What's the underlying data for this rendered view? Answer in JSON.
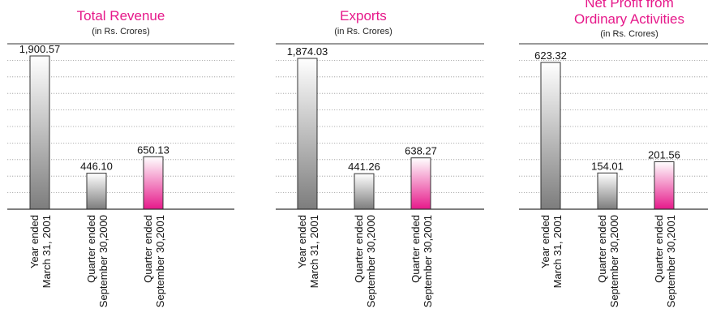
{
  "colors": {
    "title": "#e6198a",
    "bar_gray_dark": "#7d7d7d",
    "bar_gray_light": "#ffffff",
    "bar_pink_dark": "#e6198a",
    "bar_pink_light": "#ffffff",
    "grid": "#9a9a9a",
    "axis": "#333333"
  },
  "chart_data": [
    {
      "type": "bar",
      "title": "Total Revenue",
      "subtitle": "(in Rs. Crores)",
      "categories": [
        [
          "Year ended",
          "March 31, 2001"
        ],
        [
          "Quarter ended",
          "September 30,2000"
        ],
        [
          "Quarter ended",
          "September 30,2001"
        ]
      ],
      "values": [
        1900.57,
        446.1,
        650.13
      ],
      "value_labels": [
        "1,900.57",
        "446.10",
        "650.13"
      ],
      "bar_styles": [
        "gray",
        "gray",
        "pink"
      ],
      "ylim": [
        0,
        2000
      ],
      "grid": true
    },
    {
      "type": "bar",
      "title": "Exports",
      "subtitle": "(in Rs. Crores)",
      "categories": [
        [
          "Year ended",
          "March 31, 2001"
        ],
        [
          "Quarter ended",
          "September 30,2000"
        ],
        [
          "Quarter ended",
          "September 30,2001"
        ]
      ],
      "values": [
        1874.03,
        441.26,
        638.27
      ],
      "value_labels": [
        "1,874.03",
        "441.26",
        "638.27"
      ],
      "bar_styles": [
        "gray",
        "gray",
        "pink"
      ],
      "ylim": [
        0,
        2000
      ],
      "grid": true
    },
    {
      "type": "bar",
      "title": "Net Profit from",
      "title_line2": "Ordinary Activities",
      "subtitle": "(in Rs. Crores)",
      "categories": [
        [
          "Year ended",
          "March 31, 2001"
        ],
        [
          "Quarter ended",
          "September 30,2000"
        ],
        [
          "Quarter ended",
          "September 30,2001"
        ]
      ],
      "values": [
        623.32,
        154.01,
        201.56
      ],
      "value_labels": [
        "623.32",
        "154.01",
        "201.56"
      ],
      "bar_styles": [
        "gray",
        "gray",
        "pink"
      ],
      "ylim": [
        0,
        700
      ],
      "grid": true
    }
  ]
}
